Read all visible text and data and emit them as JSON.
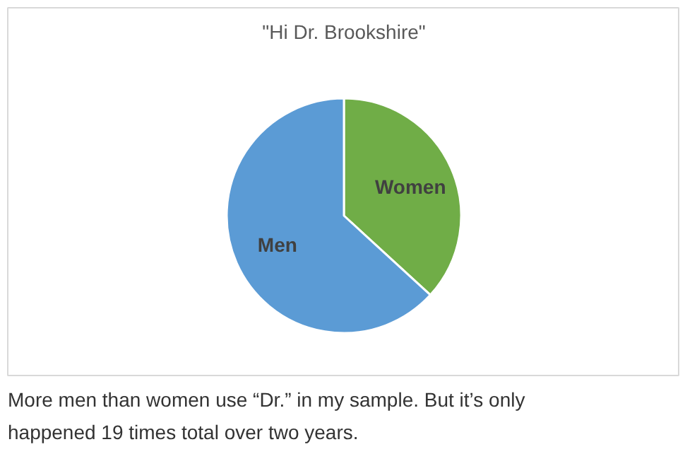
{
  "chart_data": {
    "type": "pie",
    "title": "\"Hi Dr. Brookshire\"",
    "categories": [
      "Women",
      "Men"
    ],
    "values": [
      36.8,
      63.2
    ],
    "colors": [
      "#70ad47",
      "#5b9bd5"
    ],
    "annotations": [
      "More men than women use “Dr.” in my sample. But it’s only happened 19 times total over two years."
    ]
  }
}
